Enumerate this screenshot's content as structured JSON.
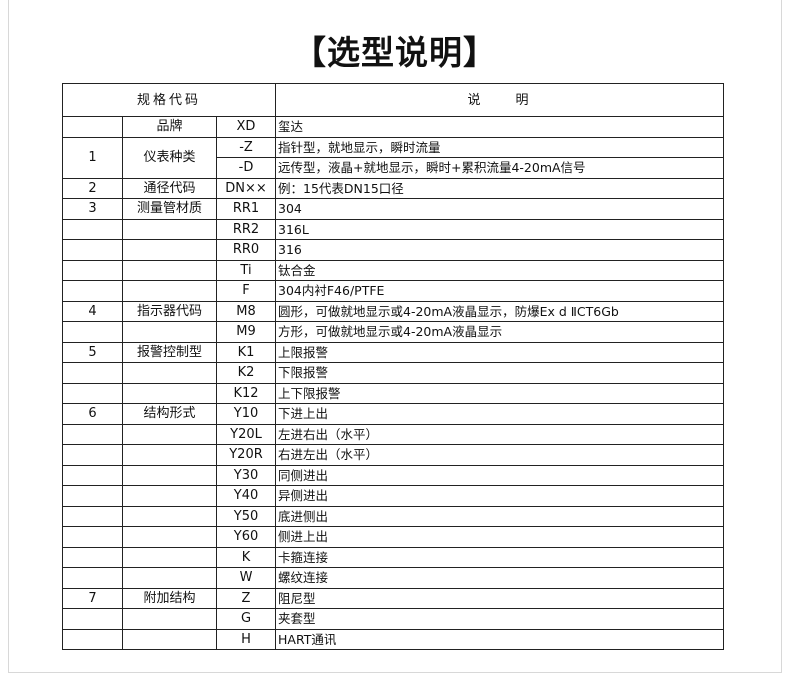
{
  "title": "【选型说明】",
  "header": {
    "code": "规格代码",
    "desc": "说　　明"
  },
  "watermark": "玺达",
  "rows": [
    {
      "num": "",
      "cat": "品牌",
      "code": "XD",
      "desc": "玺达"
    },
    {
      "num": "1",
      "cat": "仪表种类",
      "code": "-Z",
      "desc": "指针型，就地显示，瞬时流量"
    },
    {
      "num": "",
      "cat": "",
      "code": "-D",
      "desc": "远传型，液晶+就地显示，瞬时+累积流量4-20mA信号"
    },
    {
      "num": "2",
      "cat": "通径代码",
      "code": "DN××",
      "desc": "例：15代表DN15口径"
    },
    {
      "num": "3",
      "cat": "测量管材质",
      "code": "RR1",
      "desc": "304"
    },
    {
      "num": "",
      "cat": "",
      "code": "RR2",
      "desc": "316L"
    },
    {
      "num": "",
      "cat": "",
      "code": "RR0",
      "desc": "316"
    },
    {
      "num": "",
      "cat": "",
      "code": "Ti",
      "desc": "钛合金"
    },
    {
      "num": "",
      "cat": "",
      "code": "F",
      "desc": "304内衬F46/PTFE"
    },
    {
      "num": "4",
      "cat": "指示器代码",
      "code": "M8",
      "desc": "圆形，可做就地显示或4-20mA液晶显示，防爆Ex d ⅡCT6Gb"
    },
    {
      "num": "",
      "cat": "",
      "code": "M9",
      "desc": "方形，可做就地显示或4-20mA液晶显示"
    },
    {
      "num": "5",
      "cat": "报警控制型",
      "code": "K1",
      "desc": "上限报警"
    },
    {
      "num": "",
      "cat": "",
      "code": "K2",
      "desc": "下限报警"
    },
    {
      "num": "",
      "cat": "",
      "code": "K12",
      "desc": "上下限报警"
    },
    {
      "num": "6",
      "cat": "结构形式",
      "code": "Y10",
      "desc": "下进上出"
    },
    {
      "num": "",
      "cat": "",
      "code": "Y20L",
      "desc": "左进右出（水平）"
    },
    {
      "num": "",
      "cat": "",
      "code": "Y20R",
      "desc": "右进左出（水平）"
    },
    {
      "num": "",
      "cat": "",
      "code": "Y30",
      "desc": "同侧进出"
    },
    {
      "num": "",
      "cat": "",
      "code": "Y40",
      "desc": "异侧进出"
    },
    {
      "num": "",
      "cat": "",
      "code": "Y50",
      "desc": "底进侧出"
    },
    {
      "num": "",
      "cat": "",
      "code": "Y60",
      "desc": "侧进上出"
    },
    {
      "num": "",
      "cat": "",
      "code": "K",
      "desc": "卡箍连接"
    },
    {
      "num": "",
      "cat": "",
      "code": "W",
      "desc": "螺纹连接"
    },
    {
      "num": "7",
      "cat": "附加结构",
      "code": "Z",
      "desc": "阻尼型"
    },
    {
      "num": "",
      "cat": "",
      "code": "G",
      "desc": "夹套型"
    },
    {
      "num": "",
      "cat": "",
      "code": "H",
      "desc": "HART通讯"
    }
  ]
}
